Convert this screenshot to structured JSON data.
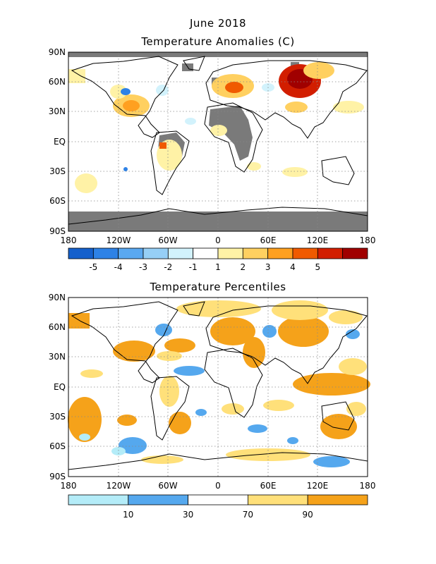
{
  "header": {
    "title": "June 2018",
    "anomaly_subtitle": "Temperature Anomalies (C)",
    "percentile_subtitle": "Temperature Percentiles"
  },
  "axes": {
    "lat_labels": [
      "90N",
      "60N",
      "30N",
      "EQ",
      "30S",
      "60S",
      "90S"
    ],
    "lon_labels": [
      "180",
      "120W",
      "60W",
      "0",
      "60E",
      "120E",
      "180"
    ]
  },
  "anomaly_colorbar": {
    "colors": [
      "#1560cc",
      "#2e82e6",
      "#5aa8f0",
      "#96cff6",
      "#d2f2fc",
      "#ffffff",
      "#fff2a6",
      "#ffd060",
      "#ffa020",
      "#f05a00",
      "#d21e00",
      "#a00000"
    ],
    "labels": [
      "-5",
      "-4",
      "-3",
      "-2",
      "-1",
      "1",
      "2",
      "3",
      "4",
      "5"
    ]
  },
  "percentile_colorbar": {
    "colors": [
      "#b4ecf8",
      "#55a8ee",
      "#ffffff",
      "#ffe07a",
      "#f5a21a"
    ],
    "labels": [
      "10",
      "30",
      "70",
      "90"
    ]
  },
  "missing_color": "#7a7a7a"
}
